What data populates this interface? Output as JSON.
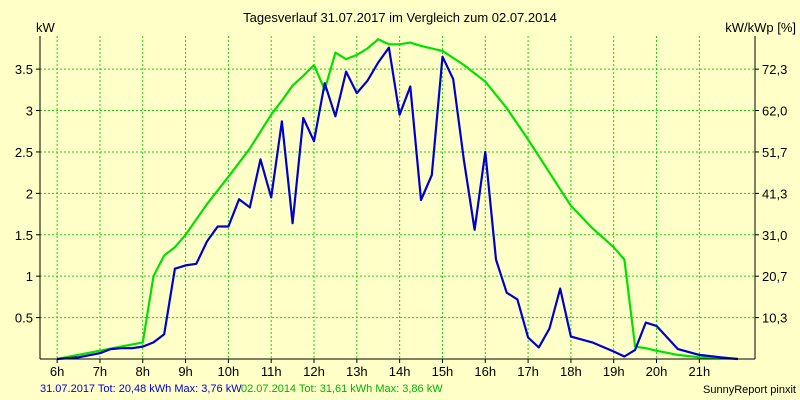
{
  "chart_data": {
    "type": "line",
    "title": "Tagesverlauf 31.07.2017 im Vergleich zum 02.07.2014",
    "ylabel_left": "kW",
    "ylabel_right": "kW/kWp [%]",
    "xlim": [
      5.6,
      22.3
    ],
    "ylim": [
      0,
      3.9
    ],
    "x_ticks": [
      6,
      7,
      8,
      9,
      10,
      11,
      12,
      13,
      14,
      15,
      16,
      17,
      18,
      19,
      20,
      21
    ],
    "x_tick_labels": [
      "6h",
      "7h",
      "8h",
      "9h",
      "10h",
      "11h",
      "12h",
      "13h",
      "14h",
      "15h",
      "16h",
      "17h",
      "18h",
      "19h",
      "20h",
      "21h"
    ],
    "y_ticks_left": [
      0.5,
      1,
      1.5,
      2,
      2.5,
      3,
      3.5
    ],
    "y_tick_labels_left": [
      "0.5",
      "1",
      "1.5",
      "2",
      "2.5",
      "3",
      "3.5"
    ],
    "y_ticks_right": [
      0.5,
      1,
      1.5,
      2,
      2.5,
      3,
      3.5
    ],
    "y_tick_labels_right": [
      "10,3",
      "20,7",
      "31,0",
      "41,3",
      "51,7",
      "62,0",
      "72,3"
    ],
    "grid": true,
    "series": [
      {
        "name": "31.07.2017 Tot: 20,48 kWh Max: 3,76 kW",
        "color": "#0000cc",
        "x": [
          6.0,
          6.5,
          7.0,
          7.25,
          7.5,
          7.75,
          8.0,
          8.25,
          8.5,
          8.75,
          9.0,
          9.25,
          9.5,
          9.75,
          10.0,
          10.25,
          10.5,
          10.75,
          11.0,
          11.25,
          11.5,
          11.75,
          12.0,
          12.25,
          12.5,
          12.75,
          13.0,
          13.25,
          13.5,
          13.75,
          14.0,
          14.25,
          14.5,
          14.75,
          15.0,
          15.25,
          15.5,
          15.75,
          16.0,
          16.25,
          16.5,
          16.75,
          17.0,
          17.25,
          17.5,
          17.75,
          18.0,
          18.5,
          19.0,
          19.25,
          19.5,
          19.75,
          20.0,
          20.5,
          21.0,
          21.5,
          21.9
        ],
        "values": [
          0.0,
          0.02,
          0.07,
          0.12,
          0.13,
          0.13,
          0.15,
          0.2,
          0.3,
          1.09,
          1.13,
          1.15,
          1.42,
          1.6,
          1.6,
          1.93,
          1.83,
          2.41,
          1.95,
          2.87,
          1.64,
          2.91,
          2.63,
          3.33,
          2.93,
          3.47,
          3.21,
          3.36,
          3.58,
          3.76,
          2.95,
          3.29,
          1.92,
          2.22,
          3.65,
          3.38,
          2.4,
          1.56,
          2.5,
          1.2,
          0.8,
          0.72,
          0.26,
          0.14,
          0.37,
          0.85,
          0.27,
          0.2,
          0.09,
          0.03,
          0.11,
          0.44,
          0.4,
          0.12,
          0.05,
          0.02,
          0.0
        ]
      },
      {
        "name": "02.07.2014 Tot: 31,61 kWh Max: 3,86 kW",
        "color": "#00e100",
        "x": [
          6.0,
          7.0,
          8.0,
          8.25,
          8.5,
          8.75,
          9.0,
          9.5,
          10.0,
          10.5,
          11.0,
          11.25,
          11.5,
          11.75,
          12.0,
          12.25,
          12.5,
          12.75,
          13.0,
          13.25,
          13.5,
          13.75,
          14.0,
          14.25,
          14.5,
          15.0,
          15.5,
          16.0,
          16.5,
          17.0,
          17.5,
          18.0,
          18.5,
          19.0,
          19.25,
          19.5,
          19.75,
          20.0,
          20.5,
          21.0,
          21.9
        ],
        "values": [
          0.0,
          0.1,
          0.2,
          1.0,
          1.25,
          1.35,
          1.5,
          1.87,
          2.2,
          2.54,
          2.95,
          3.12,
          3.3,
          3.42,
          3.55,
          3.25,
          3.7,
          3.62,
          3.67,
          3.75,
          3.86,
          3.8,
          3.8,
          3.82,
          3.78,
          3.72,
          3.55,
          3.35,
          3.03,
          2.65,
          2.25,
          1.85,
          1.58,
          1.35,
          1.2,
          0.15,
          0.13,
          0.1,
          0.05,
          0.02,
          0.0
        ]
      }
    ],
    "footer": {
      "series1": "31.07.2017 Tot: 20,48 kWh Max: 3,76 kW",
      "series2": "02.07.2014 Tot: 31,61 kWh Max: 3,86 kW",
      "credit": "SunnyReport pinxit"
    }
  }
}
